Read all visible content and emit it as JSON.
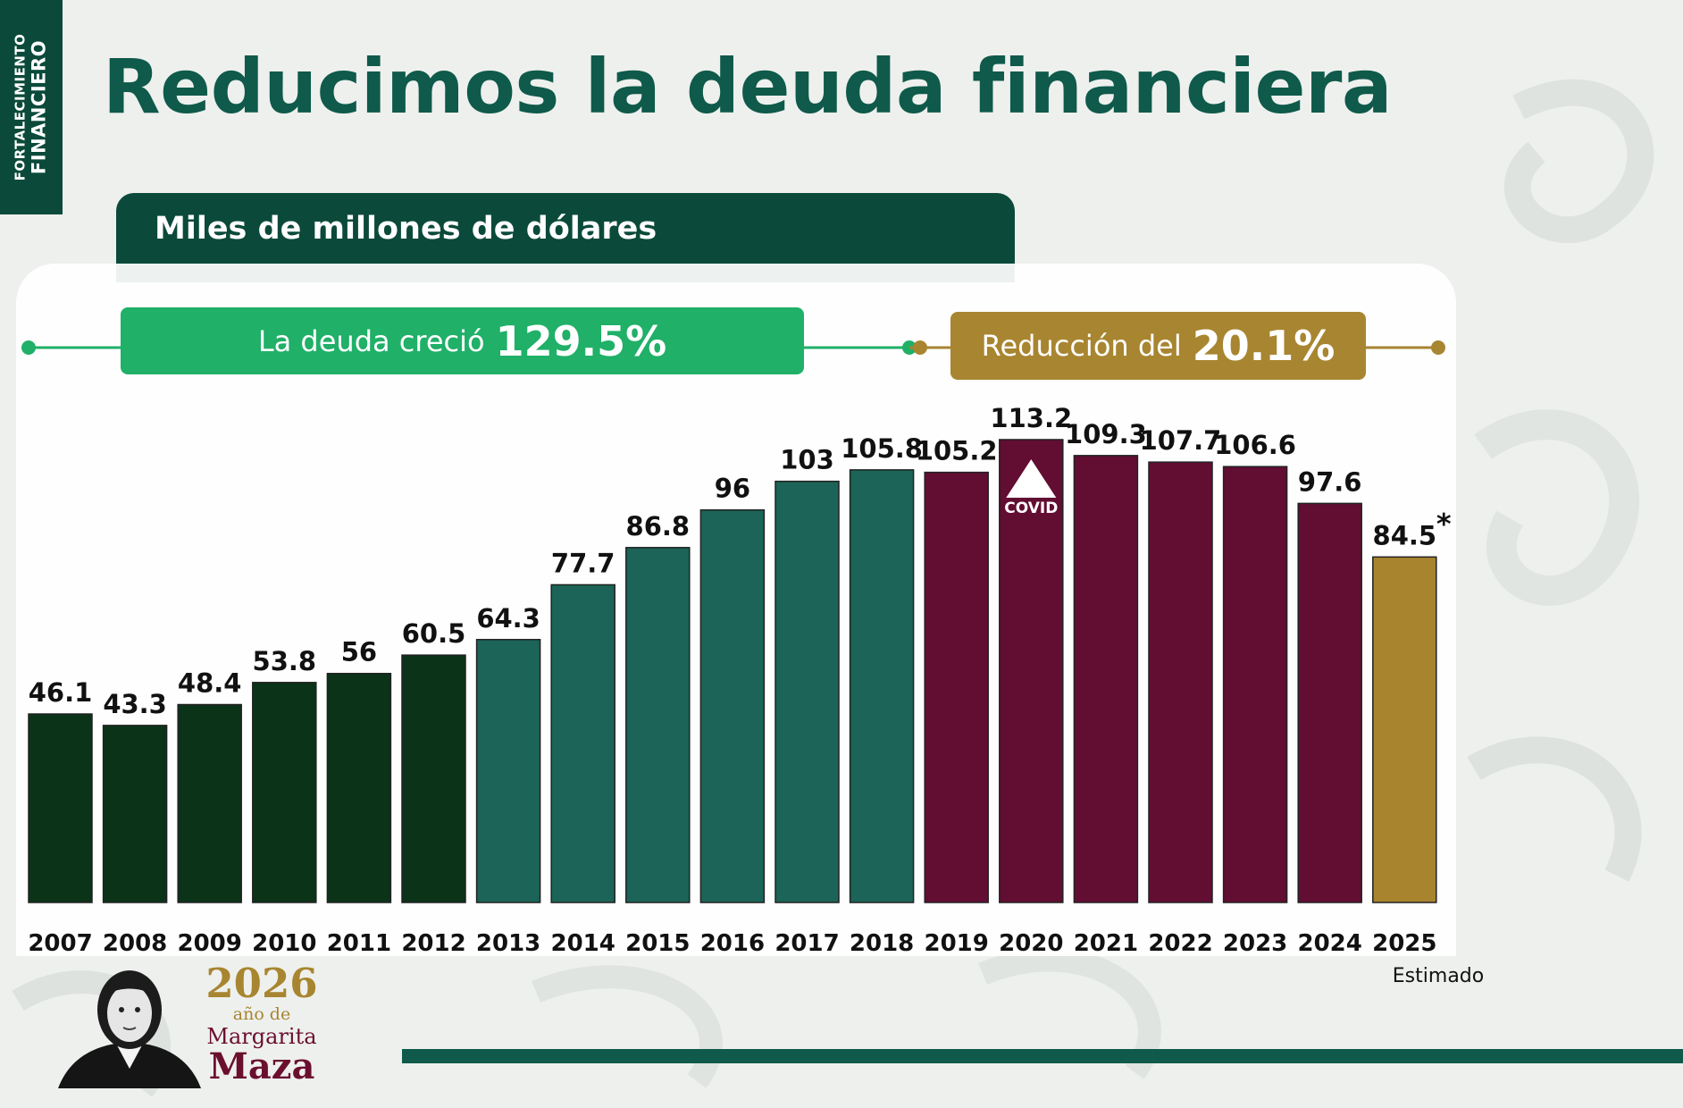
{
  "side_tab": {
    "line1": "FORTALECIMIENTO",
    "line2": "FINANCIERO"
  },
  "title": "Reducimos la deuda financiera",
  "unit_label": "Miles de millones de dólares",
  "growth_pill": {
    "text": "La deuda creció",
    "value": "129.5%"
  },
  "reduction_pill": {
    "text": "Reducción del",
    "value": "20.1%"
  },
  "covid_label": "COVID",
  "estimated_note": "Estimado",
  "colors": {
    "dark_green": "#0a3318",
    "teal": "#1b6457",
    "maroon": "#620d32",
    "gold": "#a8842e",
    "pill_green": "#20b068",
    "pill_gold": "#a88530"
  },
  "chart_data": {
    "type": "bar",
    "title": "Reducimos la deuda financiera",
    "ylabel": "Miles de millones de dólares",
    "xlabel": "",
    "ylim": [
      0,
      113.2
    ],
    "categories": [
      "2007",
      "2008",
      "2009",
      "2010",
      "2011",
      "2012",
      "2013",
      "2014",
      "2015",
      "2016",
      "2017",
      "2018",
      "2019",
      "2020",
      "2021",
      "2022",
      "2023",
      "2024",
      "2025"
    ],
    "values": [
      46.1,
      43.3,
      48.4,
      53.8,
      56,
      60.5,
      64.3,
      77.7,
      86.8,
      96,
      103,
      105.8,
      105.2,
      113.2,
      109.3,
      107.7,
      106.6,
      97.6,
      84.5
    ],
    "value_labels": [
      "46.1",
      "43.3",
      "48.4",
      "53.8",
      "56",
      "60.5",
      "64.3",
      "77.7",
      "86.8",
      "96",
      "103",
      "105.8",
      "105.2",
      "113.2",
      "109.3",
      "107.7",
      "106.6",
      "97.6",
      "84.5"
    ],
    "bar_groups": [
      "dark_green",
      "dark_green",
      "dark_green",
      "dark_green",
      "dark_green",
      "dark_green",
      "teal",
      "teal",
      "teal",
      "teal",
      "teal",
      "teal",
      "maroon",
      "maroon",
      "maroon",
      "maroon",
      "maroon",
      "maroon",
      "gold"
    ],
    "annotations": [
      {
        "year": "2020",
        "text": "COVID"
      },
      {
        "year": "2025",
        "text": "*"
      }
    ],
    "grid": false,
    "legend": "none"
  },
  "logo": {
    "year": "2026",
    "line2": "año de",
    "line3": "Margarita",
    "line4": "Maza"
  }
}
